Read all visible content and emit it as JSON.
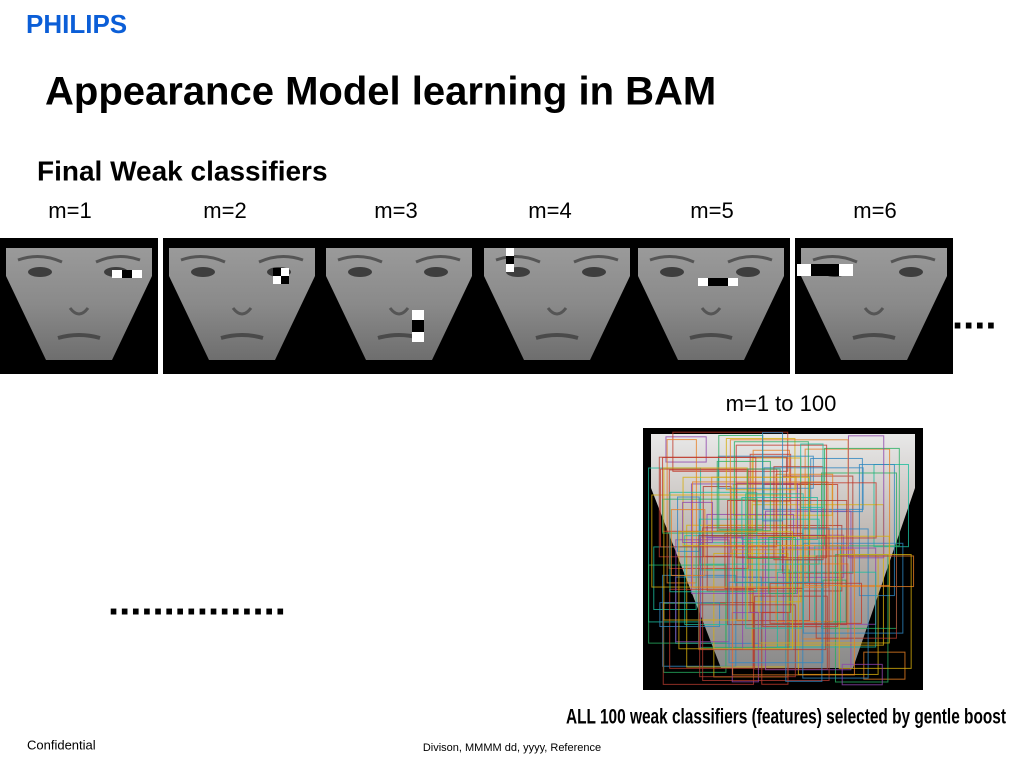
{
  "header": {
    "logo": "PHILIPS",
    "title": "Appearance Model learning in BAM"
  },
  "section": {
    "heading": "Final Weak classifiers",
    "labels": [
      "m=1",
      "m=2",
      "m=3",
      "m=4",
      "m=5",
      "m=6"
    ],
    "ellipsis_right": "....",
    "composite_label": "m=1 to 100",
    "ellipsis_left": "................",
    "caption": "ALL 100 weak classifiers (features) selected by gentle boost"
  },
  "footer": {
    "left": "Confidential",
    "center": "Divison, MMMM dd, yyyy, Reference"
  }
}
